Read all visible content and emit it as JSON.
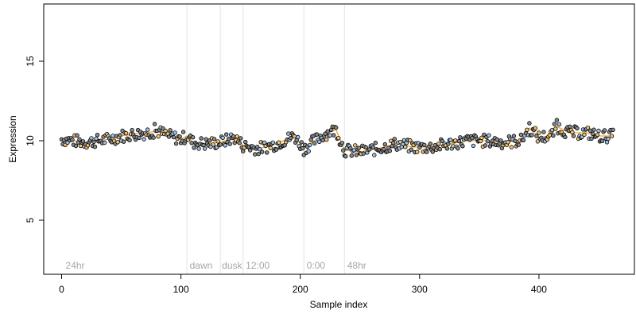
{
  "chart_data": {
    "type": "scatter",
    "title": "",
    "xlabel": "Sample index",
    "ylabel": "Expression",
    "xlim": [
      -15,
      480
    ],
    "ylim": [
      1.6,
      18.6
    ],
    "x_ticks": [
      0,
      100,
      200,
      300,
      400
    ],
    "x_tick_labels": [
      "0",
      "100",
      "200",
      "300",
      "400"
    ],
    "y_ticks": [
      5,
      10,
      15
    ],
    "y_tick_labels": [
      "5",
      "10",
      "15"
    ],
    "grid": false,
    "legend": "none",
    "n_samples": 463,
    "vlines": [
      105,
      133,
      152,
      203,
      237
    ],
    "annotations": [
      {
        "x": 2,
        "label": "24hr"
      },
      {
        "x": 106,
        "label": "dawn"
      },
      {
        "x": 133,
        "label": "dusk"
      },
      {
        "x": 153,
        "label": "12:00"
      },
      {
        "x": 204,
        "label": "0:00"
      },
      {
        "x": 238,
        "label": "48hr"
      }
    ],
    "trend": [
      [
        0,
        10.1
      ],
      [
        10,
        10.0
      ],
      [
        20,
        9.9
      ],
      [
        30,
        10.0
      ],
      [
        40,
        10.1
      ],
      [
        50,
        10.3
      ],
      [
        60,
        10.4
      ],
      [
        70,
        10.5
      ],
      [
        80,
        10.6
      ],
      [
        90,
        10.3
      ],
      [
        100,
        10.1
      ],
      [
        105,
        10.3
      ],
      [
        110,
        9.9
      ],
      [
        120,
        9.8
      ],
      [
        133,
        9.9
      ],
      [
        145,
        10.2
      ],
      [
        152,
        9.7
      ],
      [
        165,
        9.5
      ],
      [
        180,
        9.8
      ],
      [
        195,
        10.3
      ],
      [
        203,
        9.5
      ],
      [
        210,
        9.9
      ],
      [
        220,
        10.4
      ],
      [
        230,
        10.7
      ],
      [
        237,
        9.4
      ],
      [
        250,
        9.3
      ],
      [
        265,
        9.5
      ],
      [
        280,
        9.8
      ],
      [
        295,
        9.6
      ],
      [
        310,
        9.6
      ],
      [
        325,
        9.8
      ],
      [
        340,
        10.0
      ],
      [
        355,
        10.0
      ],
      [
        370,
        9.9
      ],
      [
        385,
        10.0
      ],
      [
        392,
        10.8
      ],
      [
        400,
        10.2
      ],
      [
        410,
        10.3
      ],
      [
        415,
        10.9
      ],
      [
        425,
        10.5
      ],
      [
        440,
        10.5
      ],
      [
        450,
        10.3
      ],
      [
        462,
        10.3
      ]
    ],
    "colors": {
      "point_black": "#000000",
      "point_blue": "#9ec1e6",
      "point_orange": "#f5c06b",
      "trend_line": "#e8a33d",
      "vline": "#e3e3e3",
      "axis": "#000000"
    }
  }
}
